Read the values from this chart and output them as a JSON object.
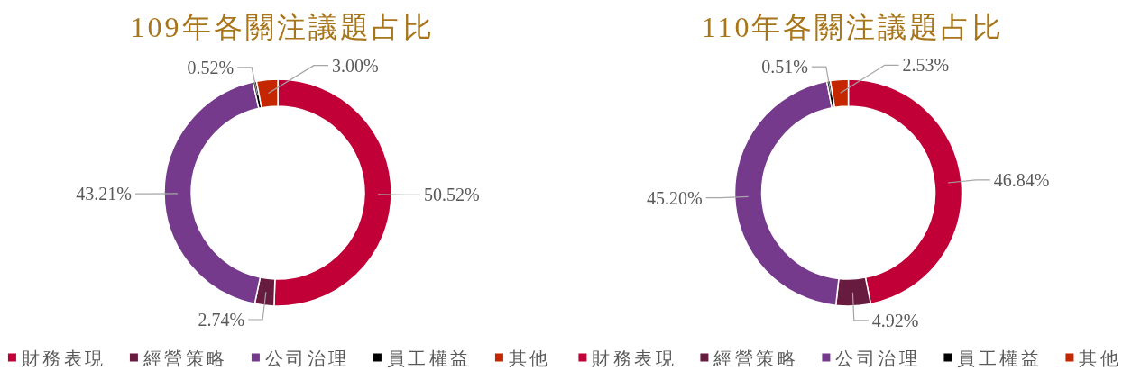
{
  "chart_data": [
    {
      "type": "donut",
      "title": "109年各關注議題占比",
      "categories": [
        "財務表現",
        "經營策略",
        "公司治理",
        "員工權益",
        "其他"
      ],
      "values": [
        50.52,
        2.74,
        43.21,
        0.52,
        3.0
      ],
      "colors": [
        "#c00037",
        "#671b3e",
        "#763a8c",
        "#000000",
        "#c42600"
      ],
      "value_labels": [
        "50.52%",
        "2.74%",
        "43.21%",
        "0.52%",
        "3.00%"
      ],
      "legend": "bottom"
    },
    {
      "type": "donut",
      "title": "110年各關注議題占比",
      "categories": [
        "財務表現",
        "經營策略",
        "公司治理",
        "員工權益",
        "其他"
      ],
      "values": [
        46.84,
        4.92,
        45.2,
        0.51,
        2.53
      ],
      "colors": [
        "#c00037",
        "#671b3e",
        "#763a8c",
        "#000000",
        "#c42600"
      ],
      "value_labels": [
        "46.84%",
        "4.92%",
        "45.20%",
        "0.51%",
        "2.53%"
      ],
      "legend": "bottom"
    }
  ]
}
